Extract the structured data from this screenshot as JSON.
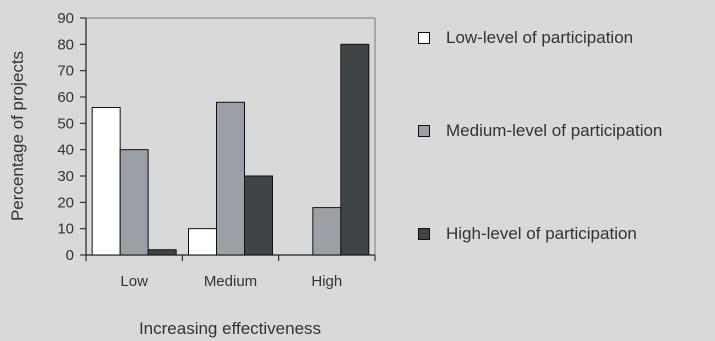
{
  "chart_data": {
    "type": "bar",
    "title": "",
    "xlabel": "Increasing effectiveness",
    "ylabel": "Percentage of projects",
    "categories": [
      "Low",
      "Medium",
      "High"
    ],
    "series": [
      {
        "name": "Low-level of participation",
        "values": [
          56,
          10,
          0
        ],
        "color": "#ffffff"
      },
      {
        "name": "Medium-level of participation",
        "values": [
          40,
          58,
          18
        ],
        "color": "#9aa0a6"
      },
      {
        "name": "High-level of participation",
        "values": [
          2,
          30,
          80
        ],
        "color": "#3f4446"
      }
    ],
    "ylim": [
      0,
      90
    ],
    "yticks": [
      0,
      10,
      20,
      30,
      40,
      50,
      60,
      70,
      80,
      90
    ],
    "ytick_labels": [
      "0",
      "10",
      "20",
      "30",
      "40",
      "50",
      "60",
      "70",
      "80",
      "90"
    ],
    "grid": false,
    "legend_position": "right"
  }
}
